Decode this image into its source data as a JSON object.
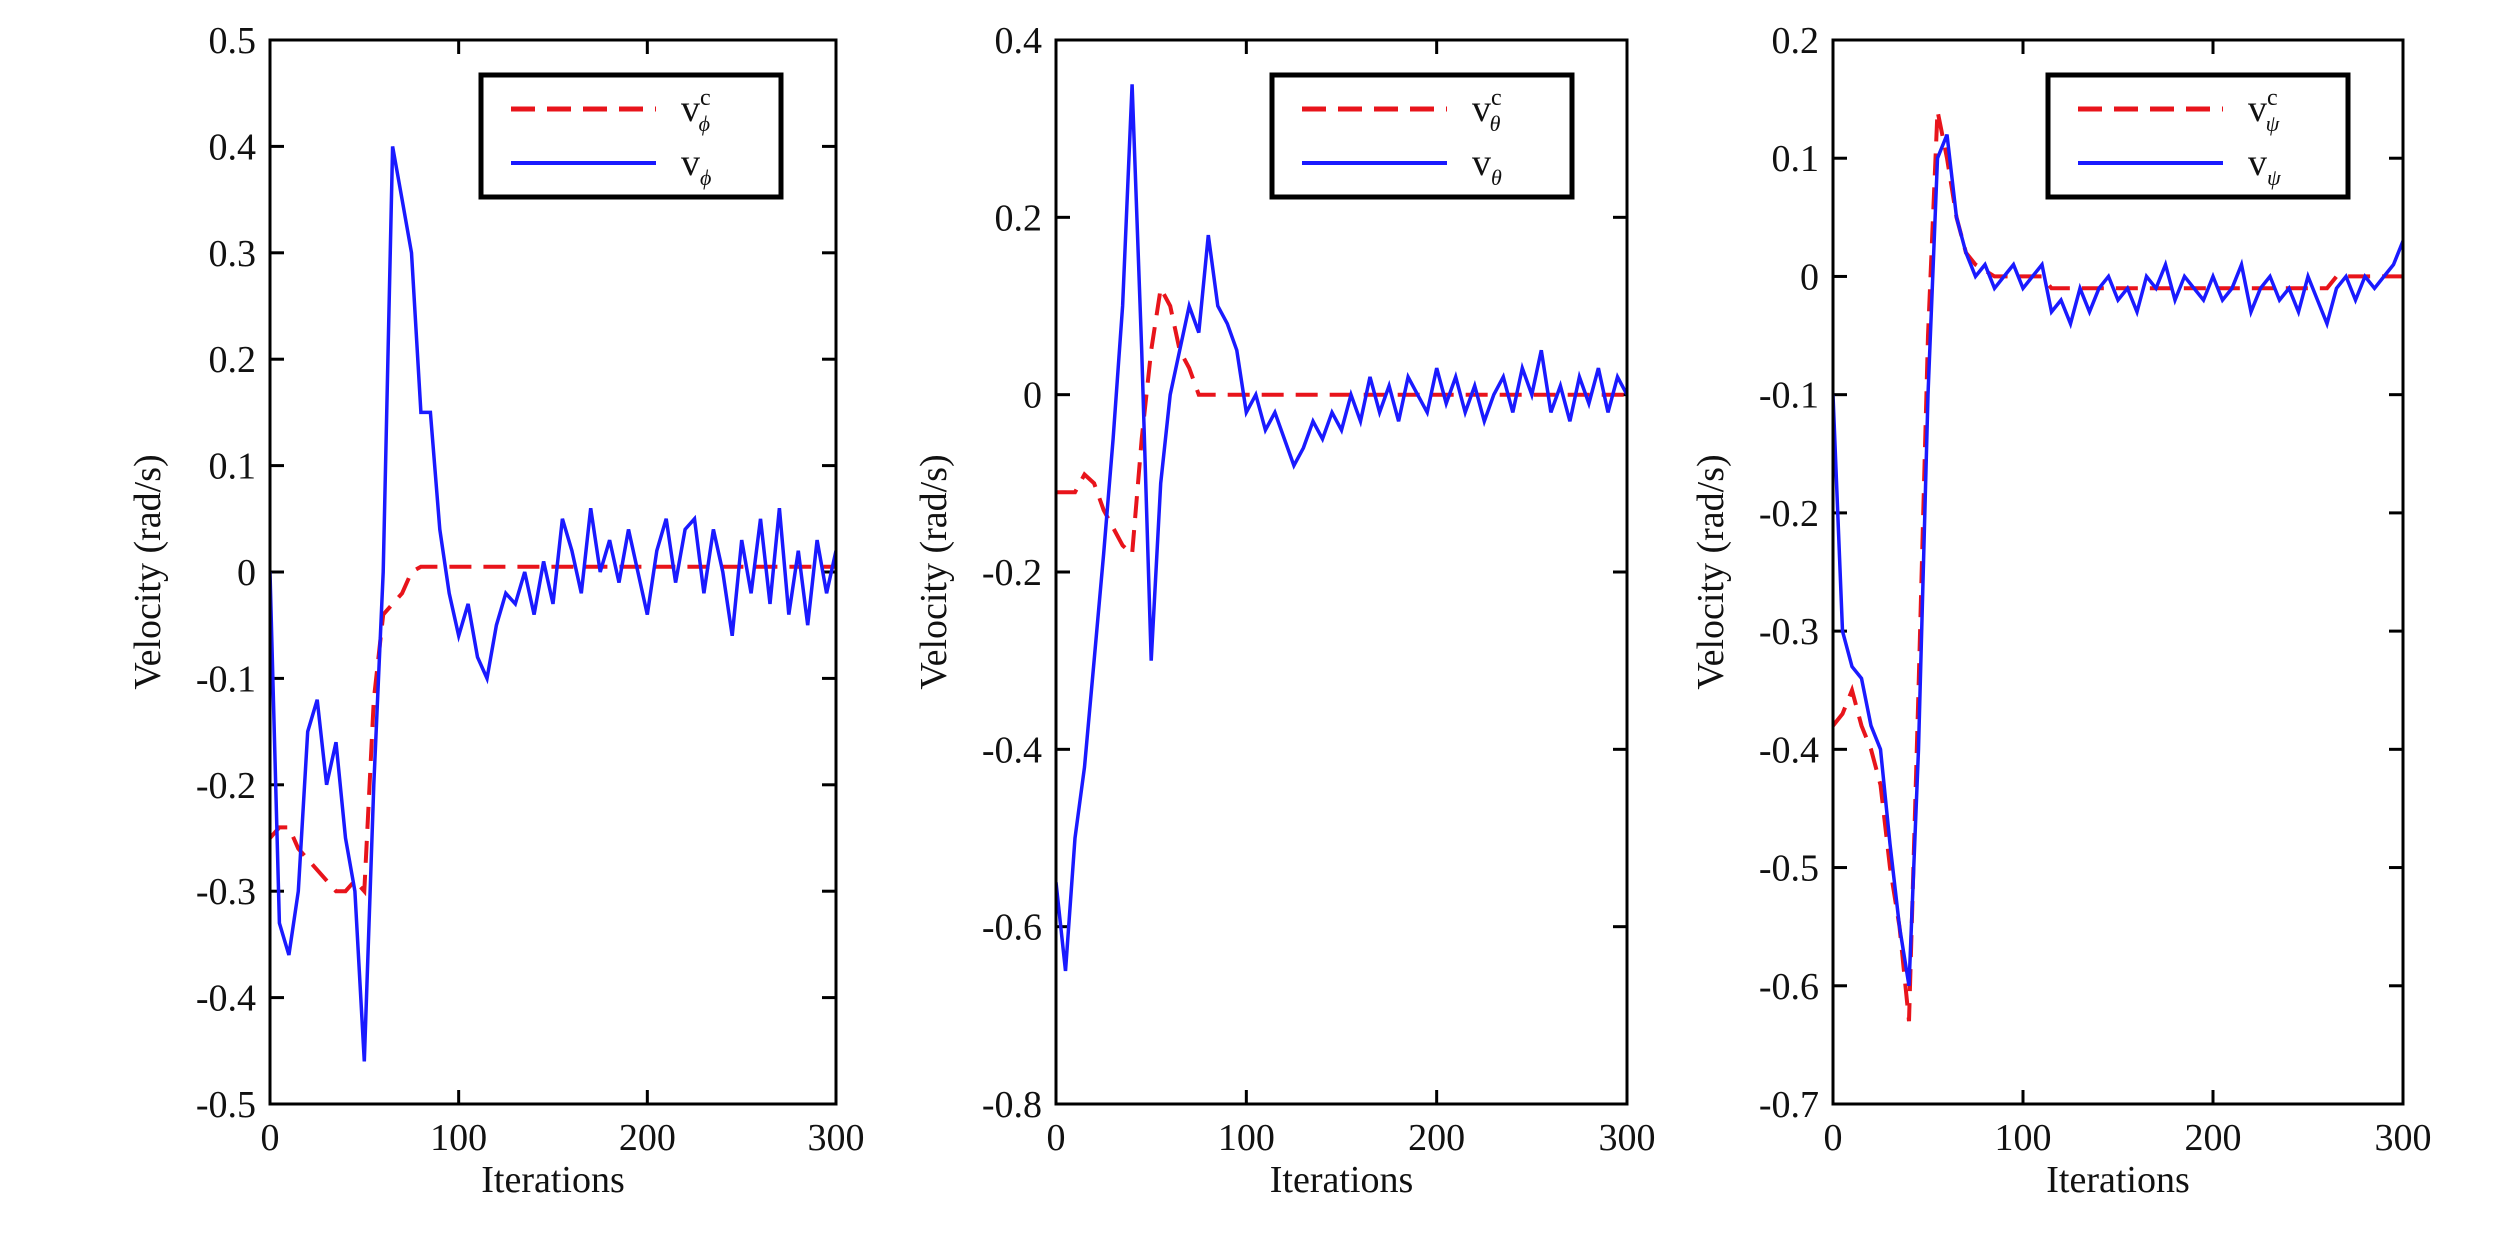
{
  "chart_data": [
    {
      "type": "line",
      "y_label": "Velocity (rad/s)",
      "x_label": "Iterations",
      "legend": "upper right",
      "xlim": [
        0,
        300
      ],
      "xticks": [
        0,
        100,
        200,
        300
      ],
      "ylim": [
        -0.5,
        0.5
      ],
      "yticks": [
        -0.5,
        -0.4,
        -0.3,
        -0.2,
        -0.1,
        0,
        0.1,
        0.2,
        0.3,
        0.4,
        0.5
      ],
      "x": [
        0,
        5,
        10,
        15,
        20,
        25,
        30,
        35,
        40,
        45,
        50,
        55,
        60,
        65,
        70,
        75,
        80,
        85,
        90,
        95,
        100,
        105,
        110,
        115,
        120,
        125,
        130,
        135,
        140,
        145,
        150,
        155,
        160,
        165,
        170,
        175,
        180,
        185,
        190,
        195,
        200,
        205,
        210,
        215,
        220,
        225,
        230,
        235,
        240,
        245,
        250,
        255,
        260,
        265,
        270,
        275,
        280,
        285,
        290,
        295,
        300
      ],
      "series": [
        {
          "name": "v",
          "sup": "c",
          "sub": "ϕ",
          "color": "#e8141b",
          "dashed": true,
          "values": [
            -0.25,
            -0.24,
            -0.24,
            -0.26,
            -0.27,
            -0.28,
            -0.29,
            -0.3,
            -0.3,
            -0.29,
            -0.3,
            -0.12,
            -0.04,
            -0.03,
            -0.02,
            0,
            0.005,
            0.005,
            0.005,
            0.005,
            0.005,
            0.005,
            0.005,
            0.005,
            0.005,
            0.005,
            0.005,
            0.005,
            0.005,
            0.005,
            0.005,
            0.005,
            0.005,
            0.005,
            0.005,
            0.005,
            0.005,
            0.005,
            0.005,
            0.005,
            0.005,
            0.005,
            0.005,
            0.005,
            0.005,
            0.005,
            0.005,
            0.005,
            0.005,
            0.005,
            0.005,
            0.005,
            0.005,
            0.005,
            0.005,
            0.005,
            0.005,
            0.005,
            0.005,
            0.005,
            0.005
          ]
        },
        {
          "name": "v",
          "sub": "ϕ",
          "color": "#1a1aff",
          "dashed": false,
          "values": [
            0,
            -0.33,
            -0.36,
            -0.3,
            -0.15,
            -0.12,
            -0.2,
            -0.16,
            -0.25,
            -0.3,
            -0.46,
            -0.2,
            0,
            0.4,
            0.35,
            0.3,
            0.15,
            0.15,
            0.04,
            -0.02,
            -0.06,
            -0.03,
            -0.08,
            -0.1,
            -0.05,
            -0.02,
            -0.03,
            0,
            -0.04,
            0.01,
            -0.03,
            0.05,
            0.02,
            -0.02,
            0.06,
            0,
            0.03,
            -0.01,
            0.04,
            0,
            -0.04,
            0.02,
            0.05,
            -0.01,
            0.04,
            0.05,
            -0.02,
            0.04,
            0,
            -0.06,
            0.03,
            -0.02,
            0.05,
            -0.03,
            0.06,
            -0.04,
            0.02,
            -0.05,
            0.03,
            -0.02,
            0.02
          ]
        }
      ]
    },
    {
      "type": "line",
      "y_label": "Velocity (rad/s)",
      "x_label": "Iterations",
      "legend": "upper right",
      "xlim": [
        0,
        300
      ],
      "xticks": [
        0,
        100,
        200,
        300
      ],
      "ylim": [
        -0.8,
        0.4
      ],
      "yticks": [
        -0.8,
        -0.6,
        -0.4,
        -0.2,
        0,
        0.2,
        0.4
      ],
      "x": [
        0,
        5,
        10,
        15,
        20,
        25,
        30,
        35,
        40,
        45,
        50,
        55,
        60,
        65,
        70,
        75,
        80,
        85,
        90,
        95,
        100,
        105,
        110,
        115,
        120,
        125,
        130,
        135,
        140,
        145,
        150,
        155,
        160,
        165,
        170,
        175,
        180,
        185,
        190,
        195,
        200,
        205,
        210,
        215,
        220,
        225,
        230,
        235,
        240,
        245,
        250,
        255,
        260,
        265,
        270,
        275,
        280,
        285,
        290,
        295,
        300
      ],
      "series": [
        {
          "name": "v",
          "sup": "c",
          "sub": "θ",
          "color": "#e8141b",
          "dashed": true,
          "values": [
            -0.11,
            -0.11,
            -0.11,
            -0.09,
            -0.1,
            -0.13,
            -0.15,
            -0.17,
            -0.18,
            -0.05,
            0.05,
            0.12,
            0.1,
            0.05,
            0.03,
            0,
            0,
            0,
            0,
            0,
            0,
            0,
            0,
            0,
            0,
            0,
            0,
            0,
            0,
            0,
            0,
            0,
            0,
            0,
            0,
            0,
            0,
            0,
            0,
            0,
            0,
            0,
            0,
            0,
            0,
            0,
            0,
            0,
            0,
            0,
            0,
            0,
            0,
            0,
            0,
            0,
            0,
            0,
            0,
            0,
            0
          ]
        },
        {
          "name": "v",
          "sub": "θ",
          "color": "#1a1aff",
          "dashed": false,
          "values": [
            -0.55,
            -0.65,
            -0.5,
            -0.42,
            -0.3,
            -0.18,
            -0.05,
            0.1,
            0.35,
            0.05,
            -0.3,
            -0.1,
            0,
            0.05,
            0.1,
            0.07,
            0.18,
            0.1,
            0.08,
            0.05,
            -0.02,
            0,
            -0.04,
            -0.02,
            -0.05,
            -0.08,
            -0.06,
            -0.03,
            -0.05,
            -0.02,
            -0.04,
            0,
            -0.03,
            0.02,
            -0.02,
            0.01,
            -0.03,
            0.02,
            0,
            -0.02,
            0.03,
            -0.01,
            0.02,
            -0.02,
            0.01,
            -0.03,
            0,
            0.02,
            -0.02,
            0.03,
            0,
            0.05,
            -0.02,
            0.01,
            -0.03,
            0.02,
            -0.01,
            0.03,
            -0.02,
            0.02,
            0
          ]
        }
      ]
    },
    {
      "type": "line",
      "y_label": "Velocity (rad/s)",
      "x_label": "Iterations",
      "legend": "upper right",
      "xlim": [
        0,
        300
      ],
      "xticks": [
        0,
        100,
        200,
        300
      ],
      "ylim": [
        -0.7,
        0.2
      ],
      "yticks": [
        -0.7,
        -0.6,
        -0.5,
        -0.4,
        -0.3,
        -0.2,
        -0.1,
        0,
        0.1,
        0.2
      ],
      "x": [
        0,
        5,
        10,
        15,
        20,
        25,
        30,
        35,
        40,
        45,
        50,
        55,
        60,
        65,
        70,
        75,
        80,
        85,
        90,
        95,
        100,
        105,
        110,
        115,
        120,
        125,
        130,
        135,
        140,
        145,
        150,
        155,
        160,
        165,
        170,
        175,
        180,
        185,
        190,
        195,
        200,
        205,
        210,
        215,
        220,
        225,
        230,
        235,
        240,
        245,
        250,
        255,
        260,
        265,
        270,
        275,
        280,
        285,
        290,
        295,
        300
      ],
      "series": [
        {
          "name": "v",
          "sup": "c",
          "sub": "ψ",
          "color": "#e8141b",
          "dashed": true,
          "values": [
            -0.38,
            -0.37,
            -0.35,
            -0.38,
            -0.4,
            -0.43,
            -0.5,
            -0.55,
            -0.63,
            -0.35,
            -0.05,
            0.14,
            0.1,
            0.05,
            0.02,
            0.01,
            0.005,
            0,
            0,
            0,
            0,
            0,
            0,
            -0.01,
            -0.01,
            -0.01,
            -0.01,
            -0.01,
            -0.01,
            -0.01,
            -0.01,
            -0.01,
            -0.01,
            -0.01,
            -0.01,
            -0.01,
            -0.01,
            -0.01,
            -0.01,
            -0.01,
            -0.01,
            -0.01,
            -0.01,
            -0.01,
            -0.01,
            -0.01,
            -0.01,
            -0.01,
            -0.01,
            -0.01,
            -0.01,
            -0.01,
            -0.01,
            0,
            0,
            0,
            0,
            0,
            0,
            0,
            0
          ]
        },
        {
          "name": "v",
          "sub": "ψ",
          "color": "#1a1aff",
          "dashed": false,
          "values": [
            -0.1,
            -0.3,
            -0.33,
            -0.34,
            -0.38,
            -0.4,
            -0.48,
            -0.55,
            -0.6,
            -0.4,
            -0.1,
            0.1,
            0.12,
            0.05,
            0.02,
            0,
            0.01,
            -0.01,
            0,
            0.01,
            -0.01,
            0,
            0.01,
            -0.03,
            -0.02,
            -0.04,
            -0.01,
            -0.03,
            -0.01,
            0,
            -0.02,
            -0.01,
            -0.03,
            0,
            -0.01,
            0.01,
            -0.02,
            0,
            -0.01,
            -0.02,
            0,
            -0.02,
            -0.01,
            0.01,
            -0.03,
            -0.01,
            0,
            -0.02,
            -0.01,
            -0.03,
            0,
            -0.02,
            -0.04,
            -0.01,
            0,
            -0.02,
            0,
            -0.01,
            0,
            0.01,
            0.03
          ]
        }
      ]
    }
  ]
}
